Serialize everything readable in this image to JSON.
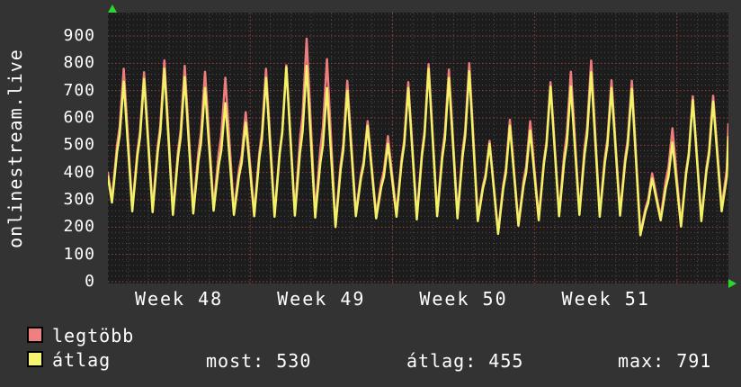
{
  "title_vertical": "onlinestream.live",
  "colors": {
    "background": "#333333",
    "plot_background": "#1c1c1c",
    "grid_minor": "#4d4d4d",
    "grid_major": "#a04343",
    "text": "#ffffff",
    "arrow": "#2dd62d",
    "series_max": "#ee7d7d",
    "series_avg": "#f2f266"
  },
  "chart_data": {
    "type": "line",
    "title": "onlinestream.live",
    "xlabel": "",
    "ylabel": "",
    "y_axis": {
      "min": 0,
      "max_visible": 986,
      "major_tick_step": 100,
      "minor_tick_step": 20,
      "tick_labels": [
        "900",
        "800",
        "700",
        "600",
        "500",
        "400",
        "300",
        "200",
        "100",
        "0"
      ],
      "tick_values": [
        900,
        800,
        700,
        600,
        500,
        400,
        300,
        200,
        100,
        0
      ]
    },
    "x_axis": {
      "unit": "days",
      "total_days": 30.53,
      "minor_step_days": 1,
      "week_boundary_days": [
        7,
        14,
        21,
        28
      ],
      "week_labels": [
        "Week 48",
        "Week 49",
        "Week 50",
        "Week 51"
      ],
      "week_label_center_days": [
        3.5,
        10.5,
        17.5,
        24.5
      ]
    },
    "grid": {
      "style": "dotted",
      "minor_on": true,
      "major_on": true
    },
    "legend_position": "bottom-left",
    "series": [
      {
        "name": "legtöbb",
        "role": "daily-maximum",
        "color": "#ee7d7d"
      },
      {
        "name": "átlag",
        "role": "daily-average",
        "color": "#f2f266"
      }
    ],
    "day_fields": [
      "peak_max",
      "peak_avg",
      "trough_max",
      "trough_avg"
    ],
    "days": [
      [
        780,
        733,
        300,
        290
      ],
      [
        767,
        742,
        270,
        258
      ],
      [
        811,
        780,
        268,
        255
      ],
      [
        791,
        750,
        255,
        245
      ],
      [
        769,
        709,
        262,
        250
      ],
      [
        747,
        654,
        270,
        260
      ],
      [
        621,
        583,
        258,
        245
      ],
      [
        780,
        746,
        252,
        240
      ],
      [
        793,
        786,
        250,
        238
      ],
      [
        890,
        791,
        255,
        242
      ],
      [
        815,
        709,
        248,
        235
      ],
      [
        736,
        700,
        208,
        200
      ],
      [
        588,
        571,
        252,
        240
      ],
      [
        533,
        505,
        245,
        232
      ],
      [
        731,
        709,
        250,
        238
      ],
      [
        797,
        780,
        240,
        228
      ],
      [
        777,
        746,
        252,
        240
      ],
      [
        800,
        771,
        245,
        232
      ],
      [
        516,
        505,
        235,
        222
      ],
      [
        593,
        571,
        183,
        175
      ],
      [
        588,
        554,
        212,
        205
      ],
      [
        731,
        715,
        235,
        225
      ],
      [
        769,
        715,
        250,
        240
      ],
      [
        810,
        767,
        255,
        245
      ],
      [
        738,
        709,
        248,
        238
      ],
      [
        736,
        706,
        252,
        242
      ],
      [
        397,
        378,
        177,
        170
      ],
      [
        562,
        510,
        235,
        225
      ],
      [
        679,
        665,
        210,
        202
      ],
      [
        681,
        660,
        230,
        222
      ],
      [
        600,
        560,
        274,
        258
      ]
    ],
    "start_values": {
      "max": 400,
      "avg": 385
    },
    "end_values": {
      "t": 30.53,
      "max": 577,
      "avg": 530
    }
  },
  "legend": {
    "items": [
      {
        "label": "legtöbb",
        "color": "#f08080"
      },
      {
        "label": "átlag",
        "color": "#f5f571"
      }
    ]
  },
  "stats": {
    "most_label": "most:",
    "most_value": "530",
    "avg_label": "átlag:",
    "avg_value": "455",
    "max_label": "max:",
    "max_value": "791"
  }
}
